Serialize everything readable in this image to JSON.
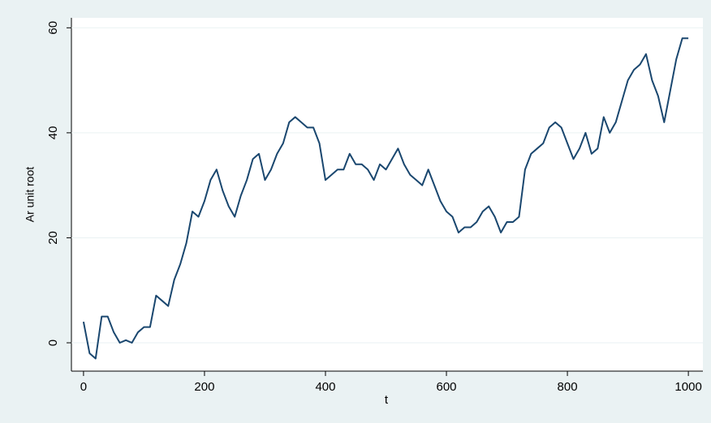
{
  "chart_data": {
    "type": "line",
    "x_label": "t",
    "y_label": "Ar unit root",
    "x": [
      0,
      10,
      20,
      30,
      40,
      50,
      60,
      70,
      80,
      90,
      100,
      110,
      120,
      130,
      140,
      150,
      160,
      170,
      180,
      190,
      200,
      210,
      220,
      230,
      240,
      250,
      260,
      270,
      280,
      290,
      300,
      310,
      320,
      330,
      340,
      350,
      360,
      370,
      380,
      390,
      400,
      410,
      420,
      430,
      440,
      450,
      460,
      470,
      480,
      490,
      500,
      510,
      520,
      530,
      540,
      550,
      560,
      570,
      580,
      590,
      600,
      610,
      620,
      630,
      640,
      650,
      660,
      670,
      680,
      690,
      700,
      710,
      720,
      730,
      740,
      750,
      760,
      770,
      780,
      790,
      800,
      810,
      820,
      830,
      840,
      850,
      860,
      870,
      880,
      890,
      900,
      910,
      920,
      930,
      940,
      950,
      960,
      970,
      980,
      990,
      1000
    ],
    "series": [
      {
        "name": "Ar unit root",
        "color": "#1a476f",
        "values": [
          4,
          -2,
          -3,
          5,
          5,
          2,
          0,
          0.5,
          0,
          2,
          3,
          3,
          9,
          8,
          7,
          12,
          15,
          19,
          25,
          24,
          27,
          31,
          33,
          29,
          26,
          24,
          28,
          31,
          35,
          36,
          31,
          33,
          36,
          38,
          42,
          43,
          42,
          41,
          41,
          38,
          31,
          32,
          33,
          33,
          36,
          34,
          34,
          33,
          31,
          34,
          33,
          35,
          37,
          34,
          32,
          31,
          30,
          33,
          30,
          27,
          25,
          24,
          21,
          22,
          22,
          23,
          25,
          26,
          24,
          21,
          23,
          23,
          24,
          33,
          36,
          37,
          38,
          41,
          42,
          41,
          38,
          35,
          37,
          40,
          36,
          37,
          43,
          40,
          42,
          46,
          50,
          52,
          53,
          55,
          50,
          47,
          42,
          48,
          54,
          58,
          58
        ]
      }
    ],
    "xlim": [
      -20,
      1024
    ],
    "ylim": [
      -5.4,
      61.9
    ],
    "xticks": [
      0,
      200,
      400,
      600,
      800,
      1000
    ],
    "yticks": [
      0,
      20,
      40,
      60
    ],
    "grid": true
  }
}
